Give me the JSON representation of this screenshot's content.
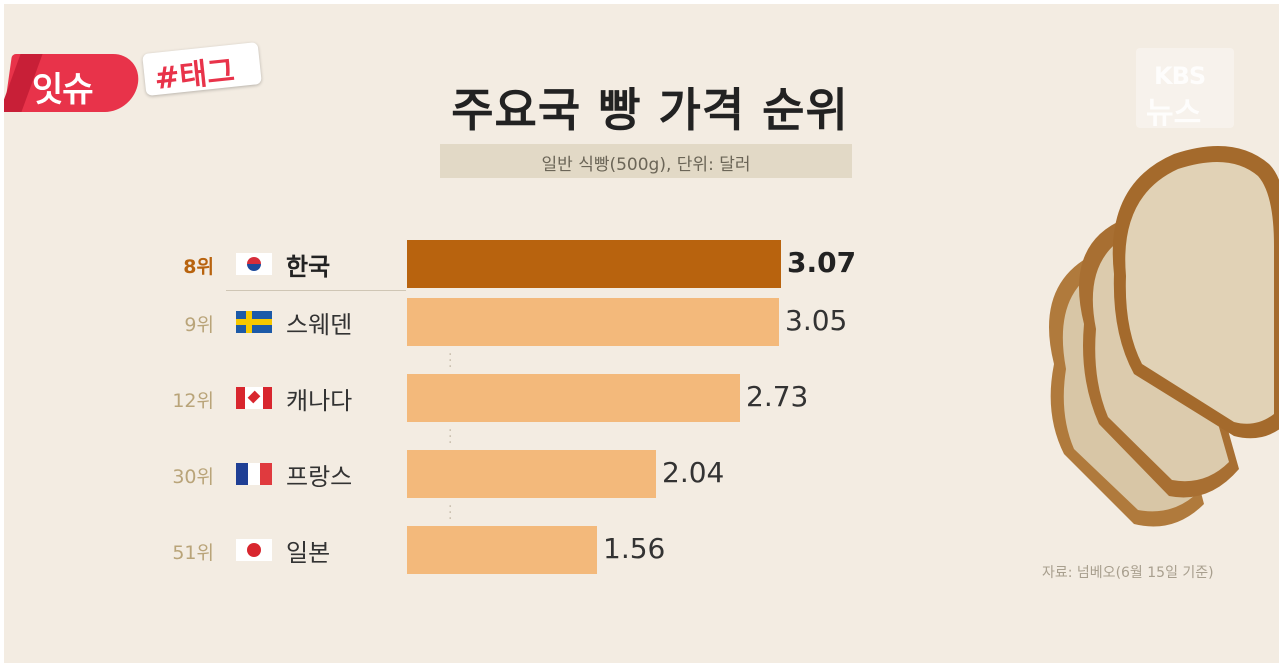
{
  "badge": {
    "main": "잇슈",
    "tag": "#태그"
  },
  "watermark": {
    "line1": "KBS",
    "line2": "뉴스"
  },
  "title": "주요국 빵 가격 순위",
  "subtitle": "일반 식빵(500g), 단위: 달러",
  "source": "자료: 넘베오(6월 15일 기준)",
  "colors": {
    "highlight": "#b8630e",
    "bar": "#f3b97b",
    "rank": "#b9a479",
    "background": "#f3ece2"
  },
  "chart_data": {
    "type": "bar",
    "orientation": "horizontal",
    "title": "주요국 빵 가격 순위",
    "subtitle": "일반 식빵(500g), 단위: 달러",
    "categories": [
      "한국",
      "스웨덴",
      "캐나다",
      "프랑스",
      "일본"
    ],
    "ranks": [
      "8위",
      "9위",
      "12위",
      "30위",
      "51위"
    ],
    "flags": [
      "south-korea-flag-icon",
      "sweden-flag-icon",
      "canada-flag-icon",
      "france-flag-icon",
      "japan-flag-icon"
    ],
    "values": [
      3.07,
      3.05,
      2.73,
      2.04,
      1.56
    ],
    "value_labels": [
      "3.07",
      "3.05",
      "2.73",
      "2.04",
      "1.56"
    ],
    "highlight": "한국",
    "xlim": [
      0,
      3.07
    ],
    "grid": false,
    "source": "자료: 넘베오(6월 15일 기준)"
  }
}
